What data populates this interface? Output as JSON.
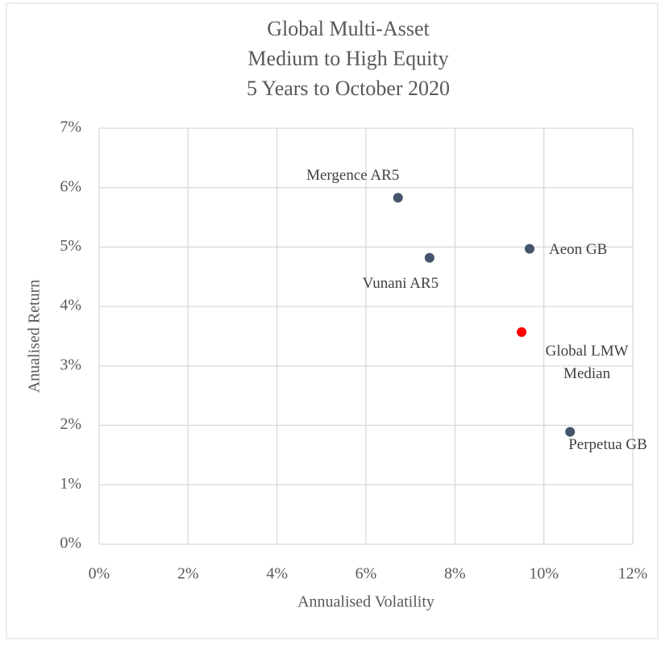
{
  "chart_data": {
    "type": "scatter",
    "title": [
      "Global Multi-Asset",
      "Medium to High Equity",
      "5 Years to October 2020"
    ],
    "x_label": "Annualised Volatility",
    "y_label": "Anualised Return",
    "series": [
      {
        "name": "Mergence AR5",
        "color": "#44546a",
        "x": [
          6.72
        ],
        "values": [
          5.83
        ]
      },
      {
        "name": "Vunani AR5",
        "color": "#44546a",
        "x": [
          7.43
        ],
        "values": [
          4.82
        ]
      },
      {
        "name": "Aeon GB",
        "color": "#44546a",
        "x": [
          9.68
        ],
        "values": [
          4.97
        ]
      },
      {
        "name": "Global LMW Median",
        "color": "#ff0000",
        "x": [
          9.5
        ],
        "values": [
          3.57
        ]
      },
      {
        "name": "Perpetua GB",
        "color": "#44546a",
        "x": [
          10.59
        ],
        "values": [
          1.89
        ]
      }
    ],
    "xlim": [
      0,
      12
    ],
    "xticks": [
      {
        "value": 0,
        "label": "0%"
      },
      {
        "value": 2,
        "label": "2%"
      },
      {
        "value": 4,
        "label": "4%"
      },
      {
        "value": 6,
        "label": "6%"
      },
      {
        "value": 8,
        "label": "8%"
      },
      {
        "value": 10,
        "label": "10%"
      },
      {
        "value": 12,
        "label": "12%"
      }
    ],
    "ylim": [
      0,
      7
    ],
    "yticks": [
      {
        "value": 0,
        "label": "0%"
      },
      {
        "value": 1,
        "label": "1%"
      },
      {
        "value": 2,
        "label": "2%"
      },
      {
        "value": 3,
        "label": "3%"
      },
      {
        "value": 4,
        "label": "4%"
      },
      {
        "value": 5,
        "label": "5%"
      },
      {
        "value": 6,
        "label": "6%"
      },
      {
        "value": 7,
        "label": "7%"
      }
    ],
    "grid": true
  }
}
